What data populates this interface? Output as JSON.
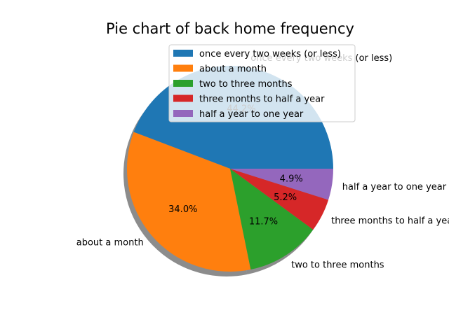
{
  "chart_data": {
    "type": "pie",
    "title": "Pie chart of back home frequency",
    "shadow": true,
    "start_angle_deg": 0,
    "direction": "counterclockwise",
    "legend_position": "top-right",
    "slices": [
      {
        "label": "once every two weeks (or less)",
        "value": 44.2,
        "pct_label": "44.2%",
        "color": "#1f77b4"
      },
      {
        "label": "about a month",
        "value": 34.0,
        "pct_label": "34.0%",
        "color": "#ff7f0e"
      },
      {
        "label": "two to three months",
        "value": 11.7,
        "pct_label": "11.7%",
        "color": "#2ca02c"
      },
      {
        "label": "three months to half a year",
        "value": 5.2,
        "pct_label": "5.2%",
        "color": "#d62728"
      },
      {
        "label": "half a year to one year",
        "value": 4.9,
        "pct_label": "4.9%",
        "color": "#9467bd"
      }
    ]
  }
}
